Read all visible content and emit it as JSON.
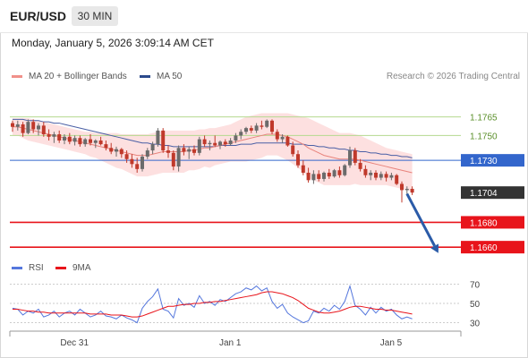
{
  "header": {
    "symbol": "EUR/USD",
    "timeframe": "30 MIN",
    "datetime": "Monday, January 5, 2026 3:09:14 AM CET"
  },
  "legend": {
    "ma20_label": "MA 20 + Bollinger Bands",
    "ma50_label": "MA 50",
    "rsi_label": "RSI",
    "ma9_label": "9MA",
    "copyright": "Research © 2026 Trading Central"
  },
  "colors": {
    "bullish": "#6b6b6b",
    "bearish": "#c0392b",
    "bollinger_fill": "#fde0e0",
    "ma20": "#e8837c",
    "ma50": "#4a5fa5",
    "resistance": "#b5d98f",
    "pivot": "#3366cc",
    "support": "#e8141b",
    "current": "#333333",
    "arrow": "#2b5ba8",
    "rsi": "#5577dd",
    "rsi_ma": "#e8141b"
  },
  "chart_data": [
    {
      "type": "line",
      "title": "",
      "xlabel": "",
      "ylabel": "",
      "ylim": [
        1.165,
        1.179
      ],
      "x_ticks": [
        "Dec 31",
        "Jan 1",
        "Jan 5"
      ],
      "x_tick_index": [
        14,
        44,
        75
      ],
      "levels": [
        {
          "name": "resistance-2",
          "value": 1.1765,
          "label": "1.1765",
          "kind": "resistance"
        },
        {
          "name": "resistance-1",
          "value": 1.175,
          "label": "1.1750",
          "kind": "resistance"
        },
        {
          "name": "pivot",
          "value": 1.173,
          "label": "1.1730",
          "kind": "pivot"
        },
        {
          "name": "current",
          "value": 1.1704,
          "label": "1.1704",
          "kind": "current"
        },
        {
          "name": "support-1",
          "value": 1.168,
          "label": "1.1680",
          "kind": "support"
        },
        {
          "name": "support-2",
          "value": 1.166,
          "label": "1.1660",
          "kind": "support"
        }
      ],
      "candles": [
        [
          1.176,
          1.1762,
          1.1753,
          1.1757
        ],
        [
          1.1757,
          1.1762,
          1.1754,
          1.1759
        ],
        [
          1.1759,
          1.1761,
          1.1749,
          1.1752
        ],
        [
          1.1752,
          1.1763,
          1.1751,
          1.1761
        ],
        [
          1.1761,
          1.1763,
          1.1752,
          1.1755
        ],
        [
          1.1755,
          1.176,
          1.175,
          1.1758
        ],
        [
          1.1758,
          1.1761,
          1.1749,
          1.1751
        ],
        [
          1.1751,
          1.1755,
          1.1746,
          1.1749
        ],
        [
          1.1749,
          1.1753,
          1.1744,
          1.1751
        ],
        [
          1.1751,
          1.1754,
          1.1744,
          1.1746
        ],
        [
          1.1746,
          1.1751,
          1.1743,
          1.1749
        ],
        [
          1.1749,
          1.1752,
          1.1743,
          1.1745
        ],
        [
          1.1745,
          1.175,
          1.1742,
          1.1748
        ],
        [
          1.1748,
          1.175,
          1.1741,
          1.1743
        ],
        [
          1.1743,
          1.1748,
          1.1741,
          1.1747
        ],
        [
          1.1747,
          1.1751,
          1.1742,
          1.1744
        ],
        [
          1.1744,
          1.1747,
          1.174,
          1.1746
        ],
        [
          1.1746,
          1.1749,
          1.1742,
          1.1743
        ],
        [
          1.1743,
          1.1746,
          1.1738,
          1.174
        ],
        [
          1.174,
          1.1744,
          1.1735,
          1.1737
        ],
        [
          1.1737,
          1.1741,
          1.1733,
          1.1739
        ],
        [
          1.1739,
          1.174,
          1.1732,
          1.1735
        ],
        [
          1.1735,
          1.1738,
          1.1728,
          1.1731
        ],
        [
          1.1731,
          1.1735,
          1.1724,
          1.1727
        ],
        [
          1.1727,
          1.1732,
          1.172,
          1.1723
        ],
        [
          1.1723,
          1.1735,
          1.1721,
          1.1733
        ],
        [
          1.1733,
          1.174,
          1.1731,
          1.1738
        ],
        [
          1.1738,
          1.1745,
          1.1735,
          1.1743
        ],
        [
          1.1743,
          1.1756,
          1.1741,
          1.1754
        ],
        [
          1.1754,
          1.1756,
          1.1736,
          1.1738
        ],
        [
          1.1738,
          1.1742,
          1.1732,
          1.1736
        ],
        [
          1.1736,
          1.1738,
          1.1722,
          1.1725
        ],
        [
          1.1725,
          1.1742,
          1.1721,
          1.174
        ],
        [
          1.174,
          1.1743,
          1.1734,
          1.1737
        ],
        [
          1.1737,
          1.1741,
          1.1731,
          1.1739
        ],
        [
          1.1739,
          1.1742,
          1.1734,
          1.1736
        ],
        [
          1.1736,
          1.1749,
          1.1734,
          1.1747
        ],
        [
          1.1747,
          1.175,
          1.1741,
          1.1743
        ],
        [
          1.1743,
          1.1746,
          1.1738,
          1.1744
        ],
        [
          1.1744,
          1.175,
          1.1741,
          1.1742
        ],
        [
          1.1742,
          1.1746,
          1.1739,
          1.1745
        ],
        [
          1.1745,
          1.1747,
          1.1741,
          1.1743
        ],
        [
          1.1743,
          1.1748,
          1.1742,
          1.1746
        ],
        [
          1.1746,
          1.1752,
          1.1744,
          1.175
        ],
        [
          1.175,
          1.1755,
          1.1747,
          1.1753
        ],
        [
          1.1753,
          1.1757,
          1.1751,
          1.1756
        ],
        [
          1.1756,
          1.1758,
          1.1752,
          1.1754
        ],
        [
          1.1754,
          1.176,
          1.1752,
          1.1758
        ],
        [
          1.1758,
          1.1762,
          1.1755,
          1.1757
        ],
        [
          1.1757,
          1.1763,
          1.1756,
          1.1762
        ],
        [
          1.1762,
          1.1763,
          1.1751,
          1.1753
        ],
        [
          1.1753,
          1.1755,
          1.1745,
          1.1747
        ],
        [
          1.1747,
          1.1751,
          1.1744,
          1.1749
        ],
        [
          1.1749,
          1.175,
          1.1741,
          1.1742
        ],
        [
          1.1742,
          1.1745,
          1.1733,
          1.1735
        ],
        [
          1.1735,
          1.1738,
          1.1724,
          1.1726
        ],
        [
          1.1726,
          1.173,
          1.1718,
          1.172
        ],
        [
          1.172,
          1.1724,
          1.1712,
          1.1714
        ],
        [
          1.1714,
          1.1722,
          1.1711,
          1.1719
        ],
        [
          1.1719,
          1.1722,
          1.1713,
          1.1715
        ],
        [
          1.1715,
          1.1721,
          1.1713,
          1.172
        ],
        [
          1.172,
          1.1723,
          1.1715,
          1.1717
        ],
        [
          1.1717,
          1.1723,
          1.1716,
          1.1722
        ],
        [
          1.1722,
          1.1725,
          1.1716,
          1.1718
        ],
        [
          1.1718,
          1.1727,
          1.1717,
          1.1726
        ],
        [
          1.1726,
          1.1741,
          1.1724,
          1.1738
        ],
        [
          1.1738,
          1.174,
          1.1726,
          1.1728
        ],
        [
          1.1728,
          1.1731,
          1.1721,
          1.1723
        ],
        [
          1.1723,
          1.1726,
          1.1716,
          1.1718
        ],
        [
          1.1718,
          1.1722,
          1.1714,
          1.172
        ],
        [
          1.172,
          1.1722,
          1.1714,
          1.1716
        ],
        [
          1.1716,
          1.1721,
          1.1714,
          1.1719
        ],
        [
          1.1719,
          1.1721,
          1.1713,
          1.1716
        ],
        [
          1.1716,
          1.172,
          1.1714,
          1.1718
        ],
        [
          1.1718,
          1.1719,
          1.171,
          1.1711
        ],
        [
          1.1711,
          1.1713,
          1.1696,
          1.1706
        ],
        [
          1.1706,
          1.1709,
          1.1702,
          1.1707
        ],
        [
          1.1707,
          1.1709,
          1.1702,
          1.1704
        ]
      ],
      "ma20": [
        1.1757,
        1.1757,
        1.1756,
        1.1755,
        1.1754,
        1.1753,
        1.1752,
        1.1751,
        1.175,
        1.1749,
        1.1748,
        1.1747,
        1.1746,
        1.1745,
        1.1744,
        1.1743,
        1.1742,
        1.1741,
        1.174,
        1.1739,
        1.1738,
        1.1737,
        1.1736,
        1.1735,
        1.1734,
        1.1734,
        1.1734,
        1.1735,
        1.1736,
        1.1737,
        1.1737,
        1.1737,
        1.1737,
        1.1737,
        1.1738,
        1.1738,
        1.1739,
        1.174,
        1.174,
        1.1741,
        1.1742,
        1.1743,
        1.1744,
        1.1745,
        1.1746,
        1.1747,
        1.1748,
        1.1749,
        1.175,
        1.1751,
        1.1751,
        1.1751,
        1.175,
        1.1749,
        1.1747,
        1.1745,
        1.1743,
        1.174,
        1.1738,
        1.1736,
        1.1734,
        1.1733,
        1.1732,
        1.1731,
        1.1731,
        1.1731,
        1.1731,
        1.173,
        1.1729,
        1.1728,
        1.1727,
        1.1726,
        1.1725,
        1.1724,
        1.1723,
        1.1722,
        1.1721,
        1.172
      ],
      "bb_upper": [
        1.1764,
        1.1764,
        1.1764,
        1.1764,
        1.1763,
        1.1762,
        1.1761,
        1.176,
        1.1759,
        1.1758,
        1.1757,
        1.1756,
        1.1755,
        1.1754,
        1.1753,
        1.1753,
        1.1752,
        1.1752,
        1.1752,
        1.1752,
        1.1752,
        1.1751,
        1.1751,
        1.1751,
        1.1751,
        1.1751,
        1.1751,
        1.1752,
        1.1753,
        1.1754,
        1.1754,
        1.1754,
        1.1754,
        1.1754,
        1.1754,
        1.1754,
        1.1755,
        1.1755,
        1.1756,
        1.1756,
        1.1757,
        1.1758,
        1.1759,
        1.1761,
        1.1763,
        1.1765,
        1.1766,
        1.1767,
        1.1768,
        1.1768,
        1.1768,
        1.1768,
        1.1768,
        1.1768,
        1.1767,
        1.1766,
        1.1765,
        1.1764,
        1.1762,
        1.176,
        1.1758,
        1.1756,
        1.1754,
        1.1752,
        1.1752,
        1.1752,
        1.1751,
        1.175,
        1.1748,
        1.1746,
        1.1744,
        1.1742,
        1.174,
        1.1739,
        1.1738,
        1.1737,
        1.1736,
        1.1735
      ],
      "bb_lower": [
        1.175,
        1.175,
        1.1748,
        1.1746,
        1.1745,
        1.1744,
        1.1743,
        1.1742,
        1.1741,
        1.174,
        1.1739,
        1.1738,
        1.1737,
        1.1736,
        1.1735,
        1.1733,
        1.1732,
        1.173,
        1.1728,
        1.1726,
        1.1724,
        1.1723,
        1.1721,
        1.1719,
        1.1717,
        1.1717,
        1.1717,
        1.1718,
        1.1719,
        1.172,
        1.172,
        1.172,
        1.172,
        1.172,
        1.1722,
        1.1722,
        1.1723,
        1.1725,
        1.1724,
        1.1726,
        1.1727,
        1.1728,
        1.1729,
        1.1729,
        1.1729,
        1.1729,
        1.173,
        1.1731,
        1.1732,
        1.1734,
        1.1734,
        1.1734,
        1.1732,
        1.173,
        1.1727,
        1.1724,
        1.1721,
        1.1716,
        1.1714,
        1.1712,
        1.171,
        1.171,
        1.171,
        1.171,
        1.171,
        1.171,
        1.1711,
        1.171,
        1.171,
        1.171,
        1.171,
        1.171,
        1.171,
        1.1709,
        1.1708,
        1.1707,
        1.1706,
        1.1705
      ],
      "ma50": [
        1.1763,
        1.1763,
        1.1763,
        1.1762,
        1.1762,
        1.1762,
        1.1761,
        1.1761,
        1.176,
        1.176,
        1.1759,
        1.1758,
        1.1757,
        1.1756,
        1.1755,
        1.1754,
        1.1753,
        1.1752,
        1.1751,
        1.175,
        1.1749,
        1.1748,
        1.1747,
        1.1746,
        1.1745,
        1.1744,
        1.1744,
        1.1743,
        1.1743,
        1.1742,
        1.1742,
        1.1741,
        1.1741,
        1.1741,
        1.1741,
        1.1741,
        1.1741,
        1.1741,
        1.1741,
        1.1741,
        1.1742,
        1.1742,
        1.1742,
        1.1742,
        1.1743,
        1.1743,
        1.1743,
        1.1744,
        1.1744,
        1.1744,
        1.1744,
        1.1744,
        1.1744,
        1.1744,
        1.1743,
        1.1743,
        1.1743,
        1.1742,
        1.1742,
        1.1741,
        1.1741,
        1.174,
        1.174,
        1.1739,
        1.1739,
        1.1738,
        1.1738,
        1.1737,
        1.1737,
        1.1736,
        1.1736,
        1.1735,
        1.1735,
        1.1734,
        1.1734,
        1.1733,
        1.1733,
        1.1732
      ],
      "projection": {
        "from_index": 76,
        "from_value": 1.1703,
        "to_index": 82,
        "to_value": 1.1661
      }
    },
    {
      "type": "line",
      "title": "",
      "ylim": [
        25,
        75
      ],
      "y_ticks": [
        70,
        50,
        30
      ],
      "series": [
        {
          "name": "RSI",
          "values": [
            45,
            44,
            38,
            42,
            40,
            44,
            36,
            38,
            42,
            36,
            40,
            42,
            38,
            44,
            40,
            36,
            38,
            42,
            37,
            36,
            34,
            38,
            35,
            33,
            30,
            45,
            52,
            57,
            65,
            44,
            42,
            35,
            55,
            48,
            50,
            46,
            58,
            50,
            52,
            48,
            54,
            52,
            56,
            60,
            62,
            66,
            64,
            68,
            63,
            66,
            52,
            45,
            49,
            40,
            36,
            33,
            30,
            32,
            42,
            40,
            45,
            42,
            48,
            44,
            52,
            68,
            48,
            44,
            38,
            46,
            40,
            46,
            42,
            44,
            38,
            34,
            36,
            34
          ]
        },
        {
          "name": "9MA",
          "values": [
            44,
            44,
            43,
            42,
            42,
            41,
            41,
            40,
            40,
            40,
            40,
            40,
            40,
            40,
            40,
            39,
            39,
            39,
            39,
            38,
            38,
            38,
            37,
            36,
            36,
            37,
            39,
            41,
            43,
            45,
            47,
            47,
            48,
            49,
            49,
            50,
            50,
            51,
            51,
            52,
            52,
            53,
            54,
            55,
            56,
            57,
            58,
            59,
            61,
            62,
            62,
            61,
            60,
            58,
            56,
            53,
            49,
            45,
            43,
            41,
            40,
            40,
            41,
            42,
            44,
            46,
            47,
            47,
            46,
            45,
            44,
            44,
            43,
            43,
            42,
            41,
            40,
            39
          ]
        }
      ]
    }
  ]
}
